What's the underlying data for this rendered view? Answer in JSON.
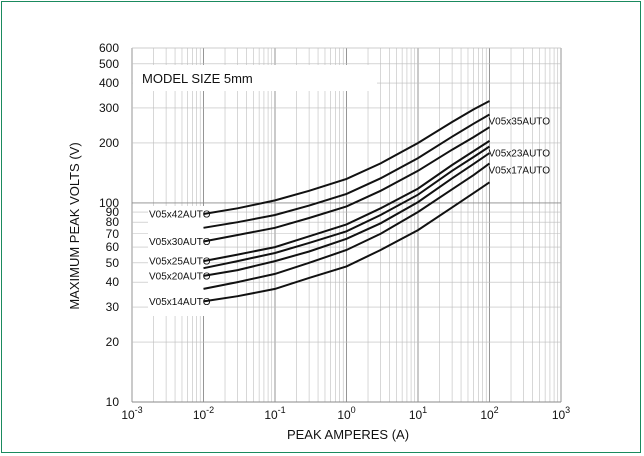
{
  "chart_data": {
    "type": "line",
    "title": "MODEL SIZE 5mm",
    "xlabel": "PEAK AMPERES (A)",
    "ylabel": "MAXIMUM PEAK VOLTS (V)",
    "x_scale": "log",
    "y_scale": "log",
    "xlim": [
      0.001,
      1000
    ],
    "ylim": [
      10,
      600
    ],
    "grid": true,
    "x_ticks": [
      {
        "base": "10",
        "exp": "-3",
        "value": 0.001
      },
      {
        "base": "10",
        "exp": "-2",
        "value": 0.01
      },
      {
        "base": "10",
        "exp": "-1",
        "value": 0.1
      },
      {
        "base": "10",
        "exp": "0",
        "value": 1
      },
      {
        "base": "10",
        "exp": "1",
        "value": 10
      },
      {
        "base": "10",
        "exp": "2",
        "value": 100
      },
      {
        "base": "10",
        "exp": "3",
        "value": 1000
      }
    ],
    "y_ticks": [
      "10",
      "20",
      "30",
      "40",
      "50",
      "60",
      "70",
      "80",
      "90",
      "100",
      "200",
      "300",
      "400",
      "500",
      "600"
    ],
    "x": [
      0.01,
      0.03,
      0.1,
      0.3,
      1,
      3,
      10,
      30,
      60,
      100
    ],
    "series": [
      {
        "name": "V05x42AUTO",
        "label_side": "left",
        "values": [
          88,
          94,
          103,
          115,
          132,
          158,
          200,
          255,
          295,
          325
        ]
      },
      {
        "name": "V05x35AUTO",
        "label_side": "right",
        "values": [
          75,
          80,
          87,
          97,
          111,
          133,
          168,
          215,
          250,
          278
        ]
      },
      {
        "name": "V05x30AUTO",
        "label_side": "left",
        "values": [
          64,
          69,
          75,
          84,
          96,
          115,
          145,
          185,
          214,
          240
        ]
      },
      {
        "name": "V05x25AUTO",
        "label_side": "left",
        "values": [
          51,
          55,
          60,
          68,
          78,
          94,
          118,
          155,
          182,
          205
        ]
      },
      {
        "name": "V05x23AUTO",
        "label_side": "right",
        "values": [
          47,
          51,
          56,
          63,
          72,
          87,
          110,
          145,
          170,
          192
        ]
      },
      {
        "name": "V05x20AUTO",
        "label_side": "left",
        "values": [
          43,
          46,
          51,
          57,
          66,
          79,
          101,
          133,
          157,
          178
        ]
      },
      {
        "name": "V05x17AUTO",
        "label_side": "right",
        "values": [
          37,
          40,
          44,
          50,
          58,
          70,
          90,
          117,
          138,
          158
        ]
      },
      {
        "name": "V05x14AUTO",
        "label_side": "left",
        "values": [
          32,
          34,
          37,
          42,
          48,
          58,
          73,
          95,
          112,
          127
        ]
      }
    ]
  }
}
